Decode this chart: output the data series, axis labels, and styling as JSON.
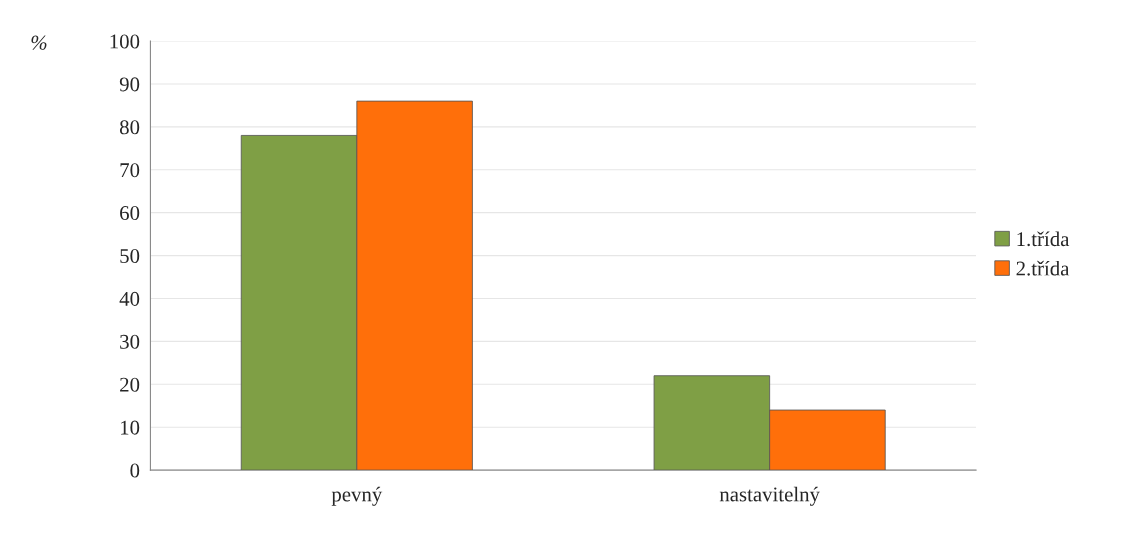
{
  "chart_data": {
    "type": "bar",
    "ylabel": "%",
    "categories": [
      "pevný",
      "nastavitelný"
    ],
    "series": [
      {
        "name": "1.třída",
        "color": "#7f9f45",
        "values": [
          78,
          22
        ]
      },
      {
        "name": "2.třída",
        "color": "#ff6f0a",
        "values": [
          86,
          14
        ]
      }
    ],
    "ylim": [
      0,
      100
    ],
    "yticks": [
      0,
      10,
      20,
      30,
      40,
      50,
      60,
      70,
      80,
      90,
      100
    ],
    "grid": "y",
    "legend": "right"
  }
}
